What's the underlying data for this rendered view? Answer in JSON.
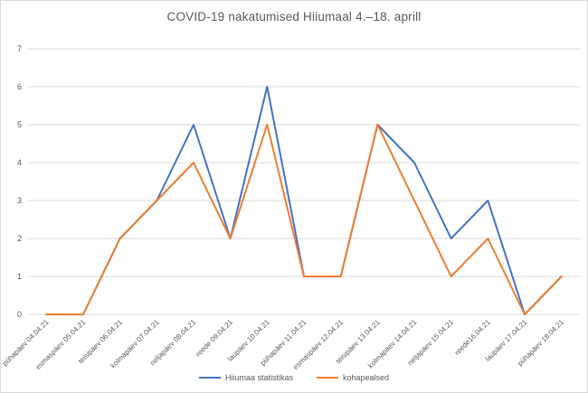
{
  "colors": {
    "series1_blue": "#4472C4",
    "series2_orange": "#ED7D31",
    "gridline": "#D9D9D9",
    "axis_text": "#595959",
    "title_text": "#595959",
    "background": "#FFFFFF"
  },
  "chart_data": {
    "type": "line",
    "title": "COVID-19 nakatumised Hiiumaal 4.–18. aprill",
    "xlabel": "",
    "ylabel": "",
    "ylim": [
      0,
      7
    ],
    "yticks": [
      0,
      1,
      2,
      3,
      4,
      5,
      6,
      7
    ],
    "grid": true,
    "legend_position": "bottom",
    "categories": [
      "pühapäev 04.04.21",
      "esmaspäev 05.04.21",
      "teisipäev 06.04.21",
      "kolmapäev 07.04.21",
      "neljapäev 08.04.21",
      "reede 09.04.21",
      "laupäev 10.04.21",
      "pühapäev 11.04.21",
      "esmaspäev 12.04.21",
      "teisipäev 13.04.21",
      "kolmapäev 14.04.21",
      "neljapäev 15.04.21",
      "reede16.04.21",
      "laupäev 17.04.21",
      "pühapäev 18.04.21"
    ],
    "series": [
      {
        "name": "Hiiumaa statistikas",
        "color": "#4472C4",
        "values": [
          0,
          0,
          2,
          3,
          5,
          2,
          6,
          1,
          1,
          5,
          4,
          2,
          3,
          0,
          1
        ]
      },
      {
        "name": "kohapealsed",
        "color": "#ED7D31",
        "values": [
          0,
          0,
          2,
          3,
          4,
          2,
          5,
          1,
          1,
          5,
          3,
          1,
          2,
          0,
          1
        ]
      }
    ]
  }
}
